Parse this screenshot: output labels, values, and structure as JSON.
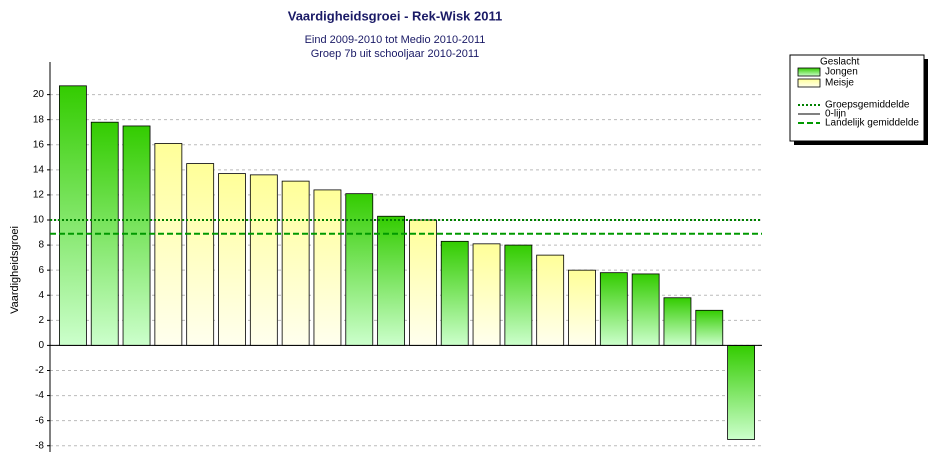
{
  "chart_data": {
    "type": "bar",
    "title": "Vaardigheidsgroei - Rek-Wisk 2011",
    "subtitle": [
      "Eind 2009-2010 tot Medio 2010-2011",
      "Groep 7b uit schooljaar 2010-2011"
    ],
    "y_label": "Vaardigheidsgroei",
    "legend_title": "Geslacht",
    "categories": [
      null,
      null,
      null,
      null,
      null,
      null,
      null,
      null,
      null,
      null,
      null,
      null,
      null,
      null,
      null,
      null,
      null,
      null,
      null,
      null,
      null,
      null
    ],
    "series": [
      {
        "name": "Jongen",
        "color": "#33cc00",
        "values": [
          20.7,
          17.8,
          17.5,
          null,
          null,
          null,
          null,
          null,
          null,
          12.1,
          10.3,
          null,
          8.3,
          null,
          8.0,
          null,
          null,
          5.8,
          5.7,
          3.8,
          2.8,
          -7.5
        ]
      },
      {
        "name": "Meisje",
        "color": "#ffff99",
        "values": [
          null,
          null,
          null,
          16.1,
          14.5,
          13.7,
          13.6,
          13.1,
          12.4,
          null,
          null,
          10.0,
          null,
          8.1,
          null,
          7.2,
          6.0,
          null,
          null,
          null,
          null,
          null
        ]
      }
    ],
    "reference_lines": [
      {
        "name": "Groepsgemiddelde",
        "value": 10.0,
        "color": "#008000",
        "style": "dotted"
      },
      {
        "name": "0-lijn",
        "value": 0,
        "color": "#000000",
        "style": "solid"
      },
      {
        "name": "Landelijk gemiddelde",
        "value": 8.9,
        "color": "#009900",
        "style": "dashed"
      }
    ],
    "ylim": [
      -8.5,
      22.6
    ],
    "yticks": [
      -8,
      -6,
      -4,
      -2,
      0,
      2,
      4,
      6,
      8,
      10,
      12,
      14,
      16,
      18,
      20
    ],
    "grid": true
  }
}
